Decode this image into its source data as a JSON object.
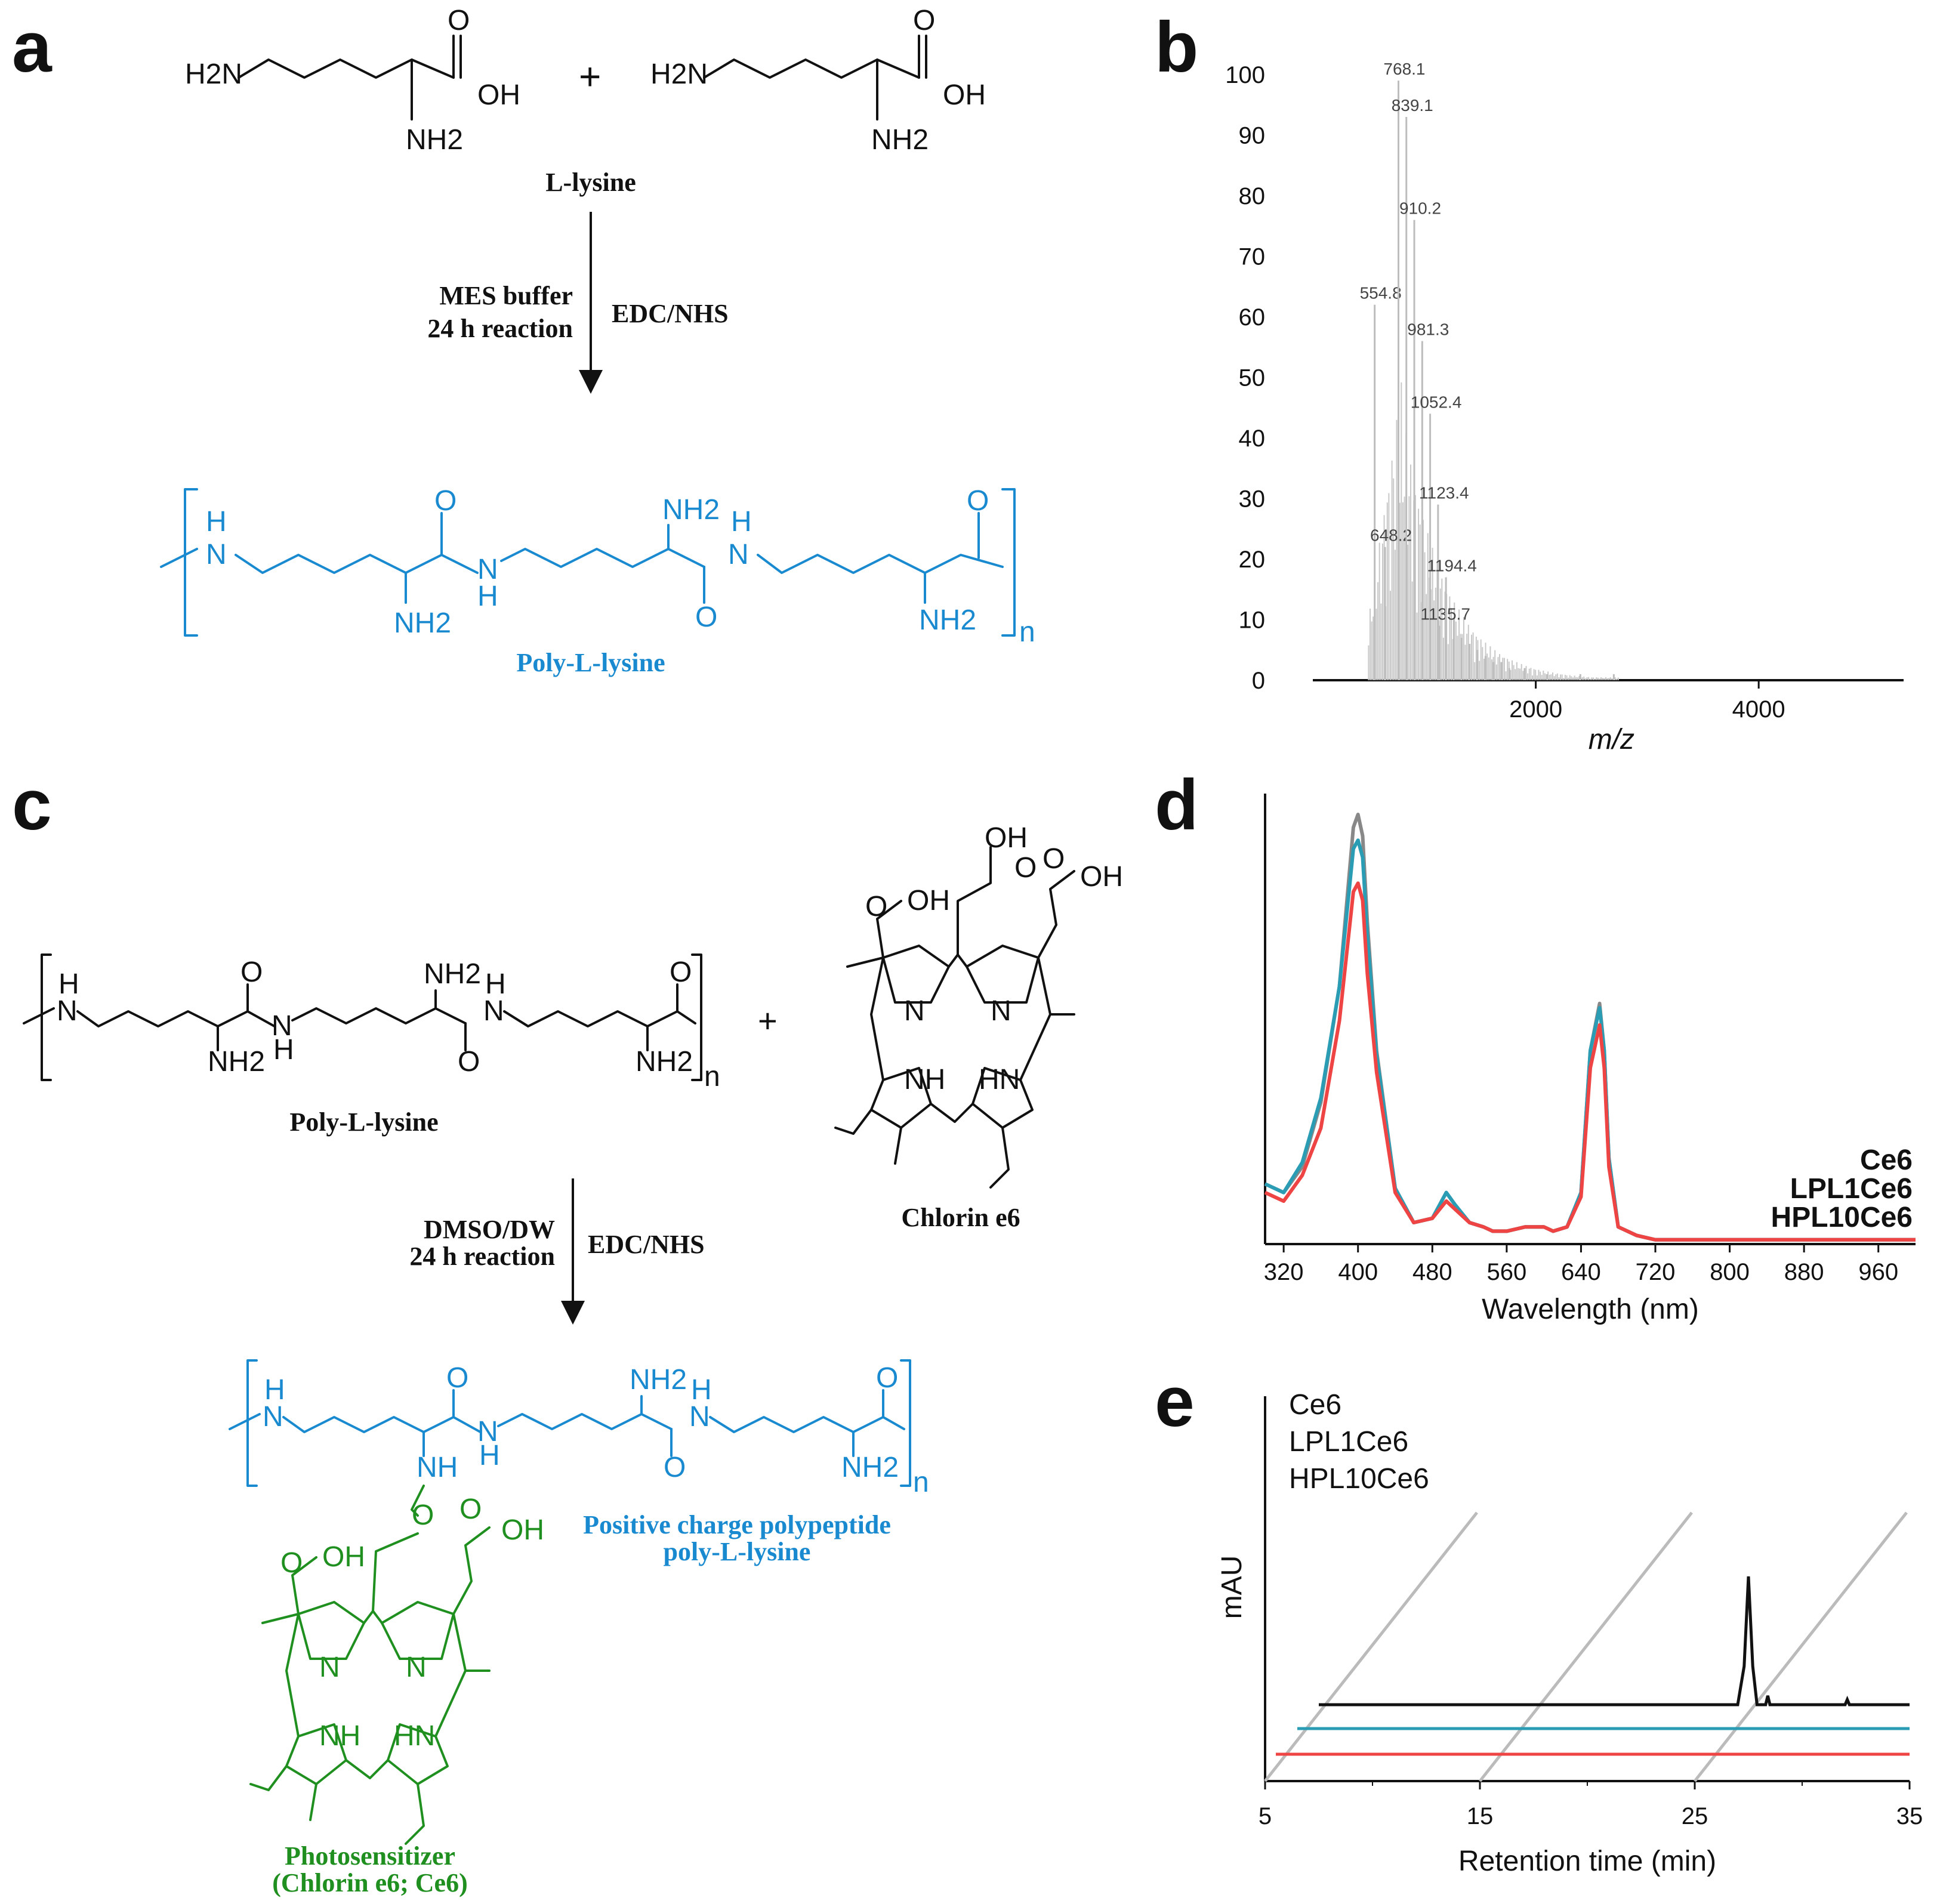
{
  "colors": {
    "black": "#111111",
    "blue": "#1a8ad0",
    "green": "#1f8f1f",
    "grey": "#888888",
    "teal": "#2a9db5",
    "red": "#ee4444"
  },
  "panels": {
    "a": {
      "letter": "a",
      "plus": "+",
      "monomer_label": "L-lysine",
      "condition_left_1": "MES buffer",
      "condition_left_2": "24 h reaction",
      "condition_right": "EDC/NHS",
      "product_label": "Poly-L-lysine",
      "atoms": {
        "h2n": "H2N",
        "oh": "OH",
        "o": "O",
        "nh2": "NH2",
        "h": "H",
        "n": "N",
        "n_index": "n"
      }
    },
    "b": {
      "letter": "b"
    },
    "c": {
      "letter": "c",
      "plus": "+",
      "reactant1_label": "Poly-L-lysine",
      "reactant2_label": "Chlorin e6",
      "condition_left_1": "DMSO/DW",
      "condition_left_2": "24 h reaction",
      "condition_right": "EDC/NHS",
      "product_blue_label_1": "Positive charge polypeptide",
      "product_blue_label_2": "poly-L-lysine",
      "product_green_label_1": "Photosensitizer",
      "product_green_label_2": "(Chlorin e6; Ce6)",
      "atoms": {
        "oh": "OH",
        "nh": "NH",
        "hn": "HN",
        "n": "N"
      }
    },
    "d": {
      "letter": "d"
    },
    "e": {
      "letter": "e"
    }
  },
  "chart_data": [
    {
      "panel": "b",
      "type": "bar",
      "xlabel": "m/z",
      "ylabel": "",
      "xlim": [
        0,
        5300
      ],
      "ylim": [
        0,
        100
      ],
      "xticks": [
        2000,
        4000
      ],
      "yticks": [
        0,
        10,
        20,
        30,
        40,
        50,
        60,
        70,
        80,
        90,
        100
      ],
      "peaks": [
        {
          "x": 554.8,
          "y": 62,
          "label": "554.8"
        },
        {
          "x": 648.2,
          "y": 22,
          "label": "648.2"
        },
        {
          "x": 768.1,
          "y": 99,
          "label": "768.1"
        },
        {
          "x": 839.1,
          "y": 93,
          "label": "839.1"
        },
        {
          "x": 910.2,
          "y": 76,
          "label": "910.2"
        },
        {
          "x": 981.3,
          "y": 56,
          "label": "981.3"
        },
        {
          "x": 1052.4,
          "y": 44,
          "label": "1052.4"
        },
        {
          "x": 1123.4,
          "y": 29,
          "label": "1123.4"
        },
        {
          "x": 1135.7,
          "y": 9,
          "label": "1135.7"
        },
        {
          "x": 1194.4,
          "y": 17,
          "label": "1194.4"
        },
        {
          "x": 1265.0,
          "y": 10,
          "label": ""
        },
        {
          "x": 1336.0,
          "y": 7,
          "label": ""
        },
        {
          "x": 1407.0,
          "y": 6,
          "label": ""
        },
        {
          "x": 1478.0,
          "y": 5,
          "label": ""
        },
        {
          "x": 1549.0,
          "y": 4,
          "label": ""
        },
        {
          "x": 1620.0,
          "y": 3,
          "label": ""
        },
        {
          "x": 1691.0,
          "y": 3,
          "label": ""
        },
        {
          "x": 1762.0,
          "y": 2,
          "label": ""
        },
        {
          "x": 1900.0,
          "y": 2,
          "label": ""
        },
        {
          "x": 2100.0,
          "y": 1,
          "label": ""
        },
        {
          "x": 2400.0,
          "y": 1,
          "label": ""
        },
        {
          "x": 2700.0,
          "y": 1,
          "label": ""
        }
      ]
    },
    {
      "panel": "d",
      "type": "line",
      "xlabel": "Wavelength (nm)",
      "ylabel": "",
      "xlim": [
        300,
        1000
      ],
      "xticks": [
        320,
        400,
        480,
        560,
        640,
        720,
        800,
        880,
        960
      ],
      "series": [
        {
          "name": "Ce6",
          "color": "#888888",
          "x": [
            300,
            320,
            340,
            360,
            380,
            395,
            400,
            405,
            410,
            420,
            440,
            460,
            480,
            495,
            505,
            520,
            535,
            545,
            560,
            580,
            600,
            610,
            625,
            640,
            650,
            660,
            665,
            670,
            680,
            700,
            720,
            800,
            1000
          ],
          "y": [
            0.14,
            0.12,
            0.18,
            0.33,
            0.6,
            0.97,
            1.0,
            0.95,
            0.75,
            0.45,
            0.13,
            0.05,
            0.06,
            0.12,
            0.09,
            0.05,
            0.04,
            0.03,
            0.03,
            0.04,
            0.04,
            0.03,
            0.04,
            0.12,
            0.45,
            0.56,
            0.45,
            0.2,
            0.04,
            0.02,
            0.01,
            0.01,
            0.01
          ]
        },
        {
          "name": "LPL1Ce6",
          "color": "#2a9db5",
          "x": [
            300,
            320,
            340,
            360,
            380,
            395,
            400,
            405,
            410,
            420,
            440,
            460,
            480,
            495,
            505,
            520,
            535,
            545,
            560,
            580,
            600,
            610,
            625,
            640,
            650,
            660,
            665,
            670,
            680,
            700,
            720,
            800,
            1000
          ],
          "y": [
            0.14,
            0.12,
            0.19,
            0.34,
            0.6,
            0.92,
            0.94,
            0.9,
            0.72,
            0.44,
            0.13,
            0.05,
            0.06,
            0.12,
            0.09,
            0.05,
            0.04,
            0.03,
            0.03,
            0.04,
            0.04,
            0.03,
            0.04,
            0.12,
            0.45,
            0.55,
            0.45,
            0.2,
            0.04,
            0.02,
            0.01,
            0.01,
            0.01
          ]
        },
        {
          "name": "HPL10Ce6",
          "color": "#ee4444",
          "x": [
            300,
            320,
            340,
            360,
            380,
            395,
            400,
            405,
            410,
            420,
            440,
            460,
            480,
            495,
            505,
            520,
            535,
            545,
            560,
            580,
            600,
            610,
            625,
            640,
            650,
            660,
            665,
            670,
            680,
            700,
            720,
            800,
            1000
          ],
          "y": [
            0.12,
            0.1,
            0.16,
            0.27,
            0.52,
            0.82,
            0.84,
            0.8,
            0.63,
            0.4,
            0.12,
            0.05,
            0.06,
            0.1,
            0.08,
            0.05,
            0.04,
            0.03,
            0.03,
            0.04,
            0.04,
            0.03,
            0.04,
            0.11,
            0.41,
            0.51,
            0.41,
            0.18,
            0.04,
            0.02,
            0.01,
            0.01,
            0.01
          ]
        }
      ]
    },
    {
      "panel": "e",
      "type": "line",
      "xlabel": "Retention time (min)",
      "ylabel": "mAU",
      "xlim": [
        5,
        35
      ],
      "xticks": [
        5,
        15,
        25,
        35
      ],
      "series": [
        {
          "name": "Ce6",
          "color": "#111111",
          "x": [
            7.5,
            20,
            27.0,
            27.3,
            27.5,
            27.7,
            27.9,
            28.3,
            28.4,
            28.5,
            32.0,
            32.1,
            32.2,
            35
          ],
          "y": [
            0,
            0,
            0,
            0.3,
            1.0,
            0.3,
            0,
            0,
            0.07,
            0,
            0,
            0.04,
            0,
            0
          ]
        },
        {
          "name": "LPL1Ce6",
          "color": "#2a9db5",
          "x": [
            6.5,
            35
          ],
          "y": [
            0,
            0
          ]
        },
        {
          "name": "HPL10Ce6",
          "color": "#ee4444",
          "x": [
            5.5,
            35
          ],
          "y": [
            0,
            0
          ]
        }
      ]
    }
  ]
}
